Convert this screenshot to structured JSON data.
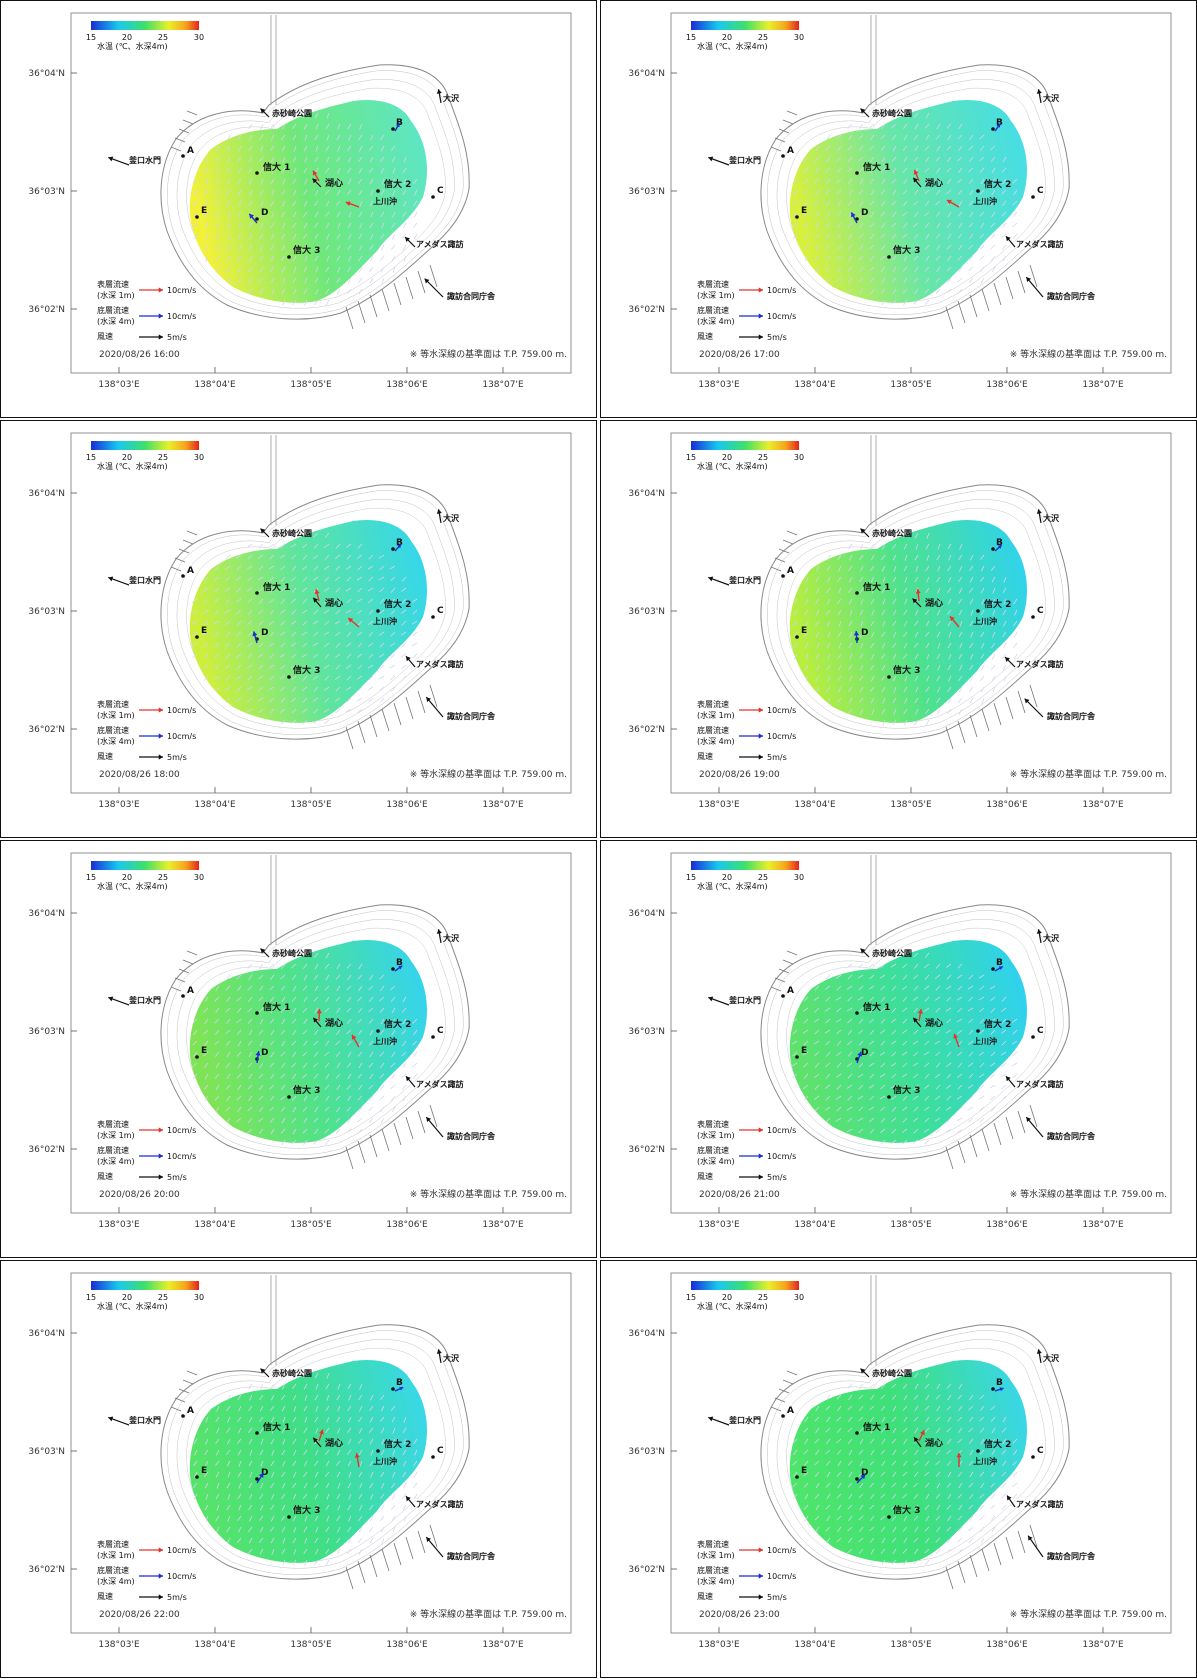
{
  "colorbar": {
    "ticks": [
      "15",
      "20",
      "25",
      "30"
    ],
    "title": "水温 (℃、水深4m)"
  },
  "axes": {
    "x_ticks": [
      "138°03'E",
      "138°04'E",
      "138°05'E",
      "138°06'E",
      "138°07'E"
    ],
    "y_ticks": [
      "36°04'N",
      "36°03'N",
      "36°02'N"
    ]
  },
  "stations": {
    "A": "A",
    "B": "B",
    "C": "C",
    "D": "D",
    "E": "E",
    "shindai1": "信大 1",
    "shindai2": "信大 2",
    "shindai3": "信大 3",
    "koshin": "湖心",
    "kamikawaoki": "上川沖",
    "kamagusuchi": "釜口水門",
    "akasunazaki": "赤砂崎公園",
    "osawa": "大沢",
    "amedas": "アメダス諏訪",
    "suwagodo": "諏訪合同庁舎"
  },
  "legend": {
    "surface_label": "表層流速",
    "surface_depth": "(水深 1m)",
    "surface_value": "10cm/s",
    "bottom_label": "底層流速",
    "bottom_depth": "(水深 4m)",
    "bottom_value": "10cm/s",
    "wind_label": "風速",
    "wind_value": "5m/s",
    "surface_color": "#e8312a",
    "bottom_color": "#1b2bd6",
    "wind_color": "#111111"
  },
  "note": "※ 等水深線の基準面は T.P. 759.00 m.",
  "panels": [
    {
      "timestamp": "2020/08/26  16:00",
      "tint": "#f1f13a",
      "center_color": "#6fe87a",
      "east_color": "#5ce6c8",
      "wind_angle": 135
    },
    {
      "timestamp": "2020/08/26  17:00",
      "tint": "#d7f03c",
      "center_color": "#66e6a8",
      "east_color": "#45dde8",
      "wind_angle": 140
    },
    {
      "timestamp": "2020/08/26  18:00",
      "tint": "#cdef3c",
      "center_color": "#5fe59b",
      "east_color": "#33d6ef",
      "wind_angle": 140
    },
    {
      "timestamp": "2020/08/26  19:00",
      "tint": "#b7ee3f",
      "center_color": "#4ee28c",
      "east_color": "#2ed2f0",
      "wind_angle": 135
    },
    {
      "timestamp": "2020/08/26  20:00",
      "tint": "#7fe455",
      "center_color": "#4ee28c",
      "east_color": "#34d3f2",
      "wind_angle": 140
    },
    {
      "timestamp": "2020/08/26  21:00",
      "tint": "#5ee26c",
      "center_color": "#3cdf9a",
      "east_color": "#2fd1f3",
      "wind_angle": 140
    },
    {
      "timestamp": "2020/08/26  22:00",
      "tint": "#56e36a",
      "center_color": "#3fdf86",
      "east_color": "#3ad7ee",
      "wind_angle": 140
    },
    {
      "timestamp": "2020/08/26  23:00",
      "tint": "#4de56a",
      "center_color": "#3ee07a",
      "east_color": "#3ad6ee",
      "wind_angle": 145
    }
  ]
}
